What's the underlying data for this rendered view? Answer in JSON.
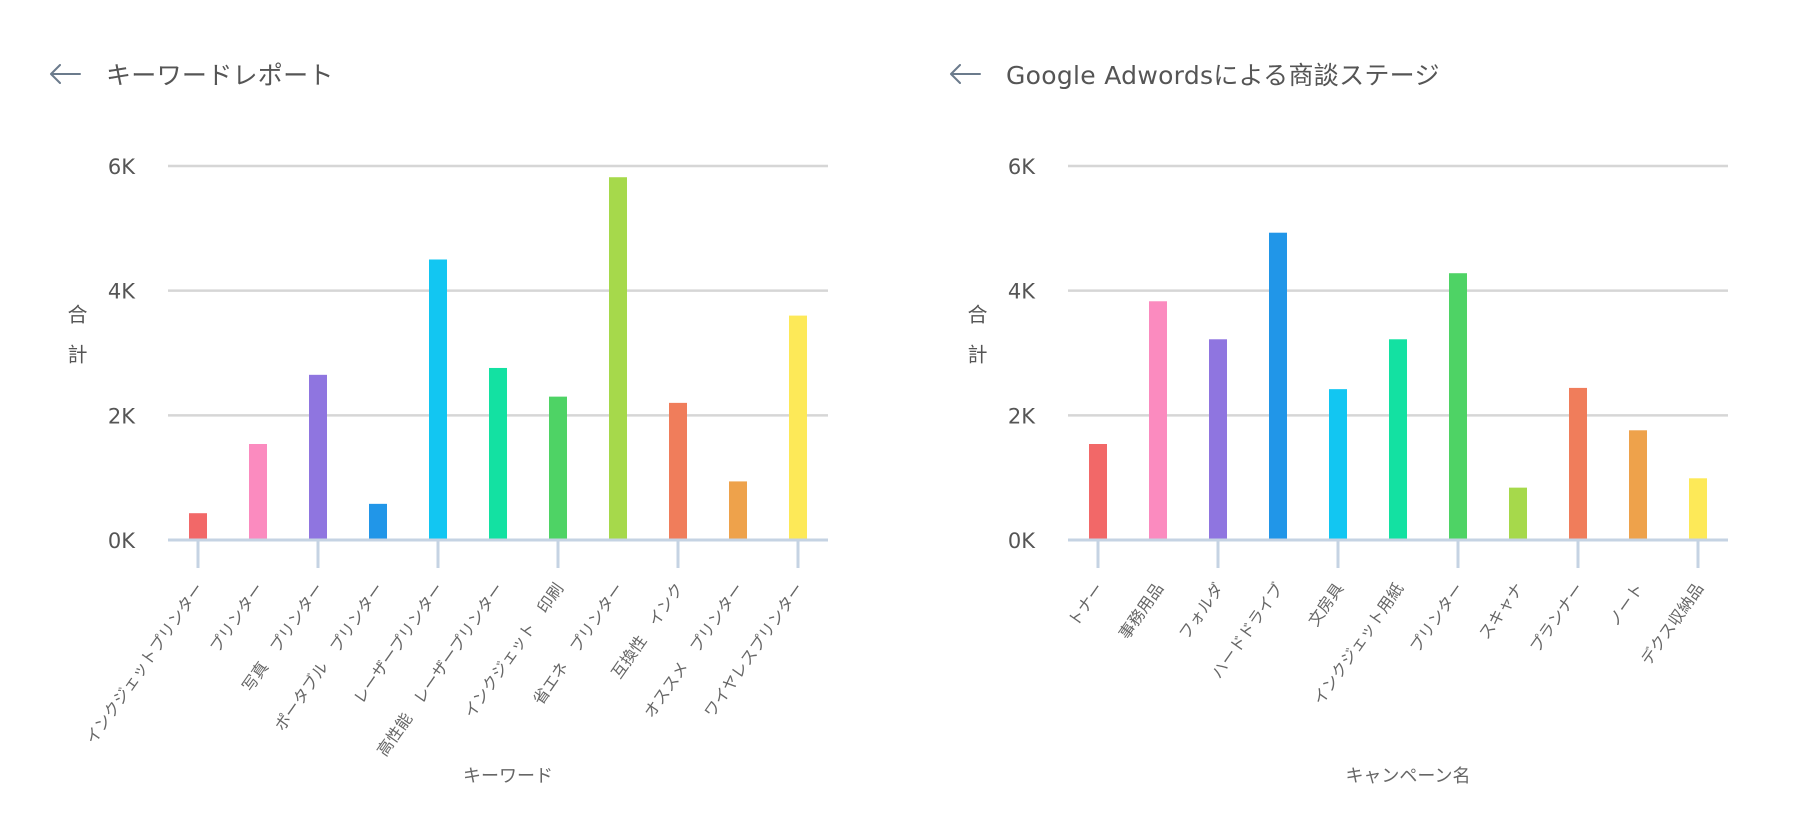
{
  "panels": [
    {
      "title": "キーワードレポート",
      "chart_data": {
        "type": "bar",
        "title": "キーワードレポート",
        "xlabel": "キーワード",
        "ylabel": "合計",
        "ylim": [
          0,
          6000
        ],
        "yticks": [
          "0K",
          "2K",
          "4K",
          "6K"
        ],
        "grid": true,
        "categories": [
          "インクジェットプリンター",
          "プリンター",
          "写真　プリンター",
          "ポータブル　プリンター",
          "レーザープリンター",
          "高性能　レーザープリンター",
          "インクジェット　印刷",
          "省エネ　プリンター",
          "互換性　インク",
          "オススメ　プリンター",
          "ワイヤレスプリンター"
        ],
        "values": [
          430,
          1540,
          2650,
          580,
          4500,
          2760,
          2300,
          5820,
          2200,
          940,
          3600
        ],
        "colors": [
          "#f26868",
          "#fb8bbf",
          "#8f75e0",
          "#2196e8",
          "#12c6f2",
          "#13e1a2",
          "#4ed365",
          "#a6d94b",
          "#f07d5b",
          "#eea24b",
          "#fde958"
        ]
      }
    },
    {
      "title": "Google Adwordsによる商談ステージ",
      "chart_data": {
        "type": "bar",
        "title": "Google Adwordsによる商談ステージ",
        "xlabel": "キャンペーン名",
        "ylabel": "合計",
        "ylim": [
          0,
          6000
        ],
        "yticks": [
          "0K",
          "2K",
          "4K",
          "6K"
        ],
        "grid": true,
        "categories": [
          "トナー",
          "事務用品",
          "フォルダ",
          "ハードドライブ",
          "文房具",
          "インクジェット用紙",
          "プリンター",
          "スキャナ",
          "プランナー",
          "ノート",
          "デクス収納品"
        ],
        "values": [
          1540,
          3830,
          3220,
          4930,
          2420,
          3220,
          4280,
          840,
          2440,
          1760,
          990
        ],
        "colors": [
          "#f26868",
          "#fb8bbf",
          "#8f75e0",
          "#2196e8",
          "#12c6f2",
          "#13e1a2",
          "#4ed365",
          "#a6d94b",
          "#f07d5b",
          "#eea24b",
          "#fde958"
        ]
      }
    }
  ]
}
